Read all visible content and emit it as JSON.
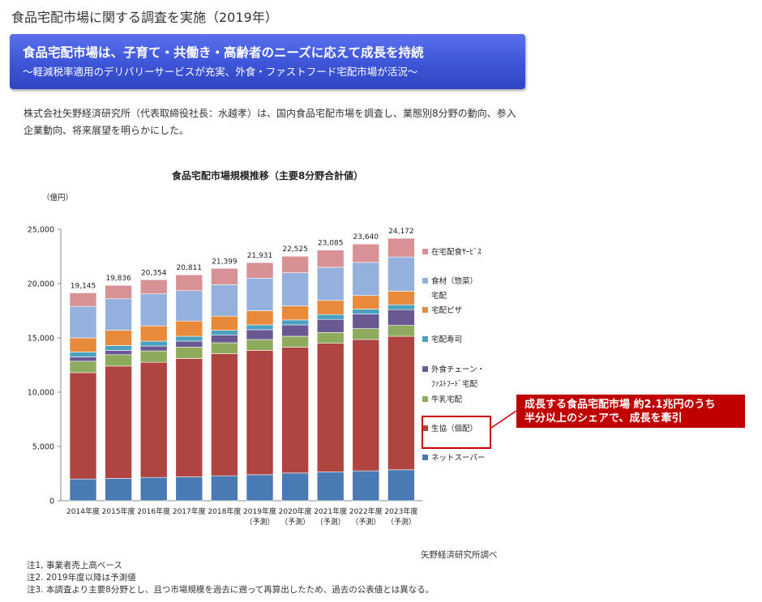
{
  "page": {
    "title": "食品宅配市場に関する調査を実施（2019年）",
    "headline": "食品宅配市場は、子育て・共働き・高齢者のニーズに応えて成長を持続",
    "subheadline": "～軽減税率適用のデリバリーサービスが充実、外食・ファストフード宅配市場が活況～",
    "intro": "株式会社矢野経済研究所（代表取締役社長：水越孝）は、国内食品宅配市場を調査し、業態別8分野の動向、参入企業動向、将来展望を明らかにした。"
  },
  "callout": {
    "line1": "成長する食品宅配市場 約2.1兆円のうち",
    "line2": "半分以上のシェアで、成長を牽引"
  },
  "source": "矢野経済研究所調べ",
  "notes": [
    "注1, 事業者売上高ベース",
    "注2. 2019年度以降は予測値",
    "注3. 本調査より主要8分野とし、且つ市場規模を過去に遡って再算出したため、過去の公表値とは異なる。"
  ],
  "chart_data": {
    "type": "bar",
    "stacked": true,
    "title": "食品宅配市場規模推移（主要8分野合計値）",
    "ylabel": "（億円）",
    "ylim": [
      0,
      25000
    ],
    "yticks": [
      "0",
      "5,000",
      "10,000",
      "15,000",
      "20,000",
      "25,000"
    ],
    "categories": [
      "2014年度",
      "2015年度",
      "2016年度",
      "2017年度",
      "2018年度",
      "2019年度",
      "2020年度",
      "2021年度",
      "2022年度",
      "2023年度"
    ],
    "category_sublabels": [
      "",
      "",
      "",
      "",
      "",
      "（予測）",
      "（予測）",
      "（予測）",
      "（予測）",
      "（予測）"
    ],
    "totals": [
      19145,
      19836,
      20354,
      20811,
      21399,
      21931,
      22525,
      23085,
      23640,
      24172
    ],
    "total_labels": [
      "19,145",
      "19,836",
      "20,354",
      "20,811",
      "21,399",
      "21,931",
      "22,525",
      "23,085",
      "23,640",
      "24,172"
    ],
    "legend_position": "right",
    "grid": false,
    "series": [
      {
        "name": "ネットスーパー",
        "color": "#4a7ab4",
        "values": [
          2000,
          2050,
          2150,
          2200,
          2300,
          2400,
          2550,
          2650,
          2750,
          2850
        ]
      },
      {
        "name": "生協（個配）",
        "color": "#b04440",
        "values": [
          9800,
          10350,
          10600,
          10900,
          11250,
          11450,
          11600,
          11850,
          12100,
          12300
        ]
      },
      {
        "name": "牛乳宅配",
        "color": "#8eaa5c",
        "values": [
          1050,
          1050,
          1050,
          1050,
          1000,
          1000,
          1000,
          1000,
          1000,
          1000
        ]
      },
      {
        "name": "外食チェーン・ファストフード宅配",
        "color": "#6a5892",
        "values": [
          400,
          400,
          450,
          550,
          700,
          900,
          1050,
          1200,
          1350,
          1450
        ]
      },
      {
        "name": "宅配寿司",
        "color": "#4aa2c0",
        "values": [
          450,
          450,
          450,
          450,
          450,
          450,
          450,
          450,
          450,
          450
        ]
      },
      {
        "name": "宅配ピザ",
        "color": "#e88a3a",
        "values": [
          1300,
          1400,
          1400,
          1400,
          1300,
          1300,
          1300,
          1300,
          1250,
          1250
        ]
      },
      {
        "name": "食材（惣菜）宅配",
        "color": "#94b0dc",
        "values": [
          2900,
          2900,
          2950,
          2800,
          2900,
          3000,
          3050,
          3050,
          3050,
          3150
        ]
      },
      {
        "name": "在宅配食ｻｰﾋﾞｽ",
        "color": "#d89296",
        "values": [
          1245,
          1236,
          1304,
          1461,
          1499,
          1431,
          1525,
          1585,
          1690,
          1722
        ]
      }
    ],
    "legend_lines": [
      [
        "在宅配食ｻｰﾋﾞｽ"
      ],
      [
        "食材（惣菜）",
        "宅配"
      ],
      [
        "宅配ピザ"
      ],
      [
        "宅配寿司"
      ],
      [
        "外食チェーン・",
        "ﾌｧｽﾄﾌｰﾄﾞ宅配"
      ],
      [
        "牛乳宅配"
      ],
      [
        "生協（個配）"
      ],
      [
        "ネットスーパー"
      ]
    ]
  }
}
